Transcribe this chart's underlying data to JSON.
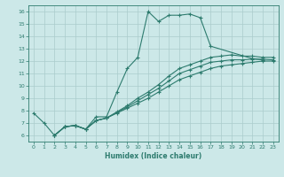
{
  "title": "",
  "xlabel": "Humidex (Indice chaleur)",
  "bg_color": "#cce8e8",
  "grid_color": "#aacccc",
  "line_color": "#2d7b6e",
  "xlim": [
    -0.5,
    23.5
  ],
  "ylim": [
    5.5,
    16.5
  ],
  "xticks": [
    0,
    1,
    2,
    3,
    4,
    5,
    6,
    7,
    8,
    9,
    10,
    11,
    12,
    13,
    14,
    15,
    16,
    17,
    18,
    19,
    20,
    21,
    22,
    23
  ],
  "yticks": [
    6,
    7,
    8,
    9,
    10,
    11,
    12,
    13,
    14,
    15,
    16
  ],
  "lines": [
    {
      "x": [
        0,
        1,
        2,
        3,
        4,
        5,
        6,
        7,
        8,
        9,
        10,
        11,
        12,
        13,
        14,
        15,
        16,
        17,
        21,
        22
      ],
      "y": [
        7.8,
        7.0,
        6.0,
        6.7,
        6.8,
        6.5,
        7.5,
        7.5,
        9.5,
        11.4,
        12.3,
        16.0,
        15.2,
        15.7,
        15.7,
        15.8,
        15.5,
        13.2,
        12.2,
        12.1
      ]
    },
    {
      "x": [
        2,
        3,
        4,
        5,
        6,
        7,
        8,
        9,
        10,
        11,
        12,
        13,
        14,
        15,
        16,
        17,
        18,
        19,
        20,
        21,
        22,
        23
      ],
      "y": [
        6.0,
        6.7,
        6.8,
        6.5,
        7.2,
        7.4,
        7.8,
        8.2,
        8.6,
        9.0,
        9.5,
        10.0,
        10.5,
        10.8,
        11.1,
        11.4,
        11.6,
        11.7,
        11.8,
        11.9,
        12.0,
        12.0
      ]
    },
    {
      "x": [
        2,
        3,
        4,
        5,
        6,
        7,
        8,
        9,
        10,
        11,
        12,
        13,
        14,
        15,
        16,
        17,
        18,
        19,
        20,
        21,
        22,
        23
      ],
      "y": [
        6.0,
        6.7,
        6.8,
        6.5,
        7.2,
        7.4,
        7.9,
        8.4,
        9.0,
        9.5,
        10.1,
        10.8,
        11.4,
        11.7,
        12.0,
        12.3,
        12.4,
        12.5,
        12.4,
        12.4,
        12.3,
        12.3
      ]
    },
    {
      "x": [
        2,
        3,
        4,
        5,
        6,
        7,
        8,
        9,
        10,
        11,
        12,
        13,
        14,
        15,
        16,
        17,
        18,
        19,
        20,
        21,
        22,
        23
      ],
      "y": [
        6.0,
        6.7,
        6.8,
        6.5,
        7.2,
        7.4,
        7.85,
        8.3,
        8.8,
        9.3,
        9.8,
        10.4,
        11.0,
        11.3,
        11.6,
        11.9,
        12.0,
        12.1,
        12.1,
        12.15,
        12.15,
        12.1
      ]
    }
  ]
}
